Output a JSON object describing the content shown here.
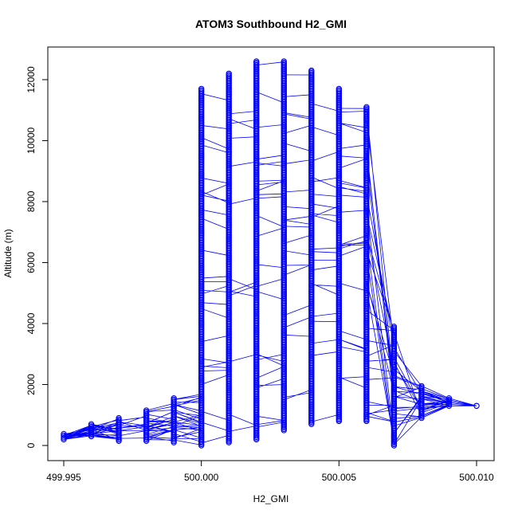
{
  "chart_data": {
    "type": "scatter",
    "title": "ATOM3 Southbound H2_GMI",
    "xlabel": "H2_GMI",
    "ylabel": "Altitude (m)",
    "xlim": [
      499.995,
      500.01
    ],
    "ylim": [
      0,
      12600
    ],
    "xticks": [
      499.995,
      500.0,
      500.005,
      500.01
    ],
    "xtick_labels": [
      "499.995",
      "500.000",
      "500.005",
      "500.010"
    ],
    "yticks": [
      0,
      2000,
      4000,
      6000,
      8000,
      10000,
      12000
    ],
    "ytick_labels": [
      "0",
      "2000",
      "4000",
      "6000",
      "8000",
      "10000",
      "12000"
    ],
    "grid": false,
    "marker": "open-circle",
    "connected": true,
    "color": "#0000ff",
    "columns": [
      {
        "x": 499.995,
        "ymin": 200,
        "ymax": 380
      },
      {
        "x": 499.996,
        "ymin": 300,
        "ymax": 700
      },
      {
        "x": 499.997,
        "ymin": 150,
        "ymax": 900
      },
      {
        "x": 499.998,
        "ymin": 150,
        "ymax": 1150
      },
      {
        "x": 499.999,
        "ymin": 100,
        "ymax": 1550
      },
      {
        "x": 500.0,
        "ymin": 0,
        "ymax": 11700
      },
      {
        "x": 500.001,
        "ymin": 100,
        "ymax": 12200
      },
      {
        "x": 500.002,
        "ymin": 200,
        "ymax": 12600
      },
      {
        "x": 500.003,
        "ymin": 500,
        "ymax": 12600
      },
      {
        "x": 500.004,
        "ymin": 700,
        "ymax": 12300
      },
      {
        "x": 500.005,
        "ymin": 800,
        "ymax": 11700
      },
      {
        "x": 500.006,
        "ymin": 800,
        "ymax": 11100
      },
      {
        "x": 500.007,
        "ymin": 0,
        "ymax": 3900
      },
      {
        "x": 500.008,
        "ymin": 900,
        "ymax": 1950
      },
      {
        "x": 500.009,
        "ymin": 1300,
        "ymax": 1550
      },
      {
        "x": 500.01,
        "ymin": 1300,
        "ymax": 1300
      }
    ]
  }
}
